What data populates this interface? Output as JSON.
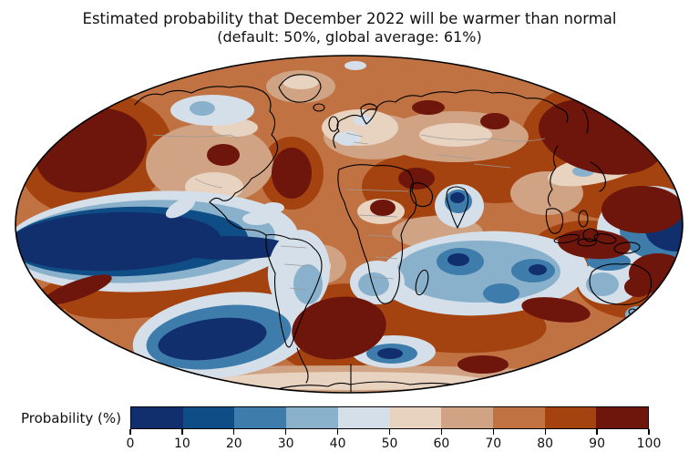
{
  "figure": {
    "title_line1": "Estimated probability that December 2022 will be warmer than normal",
    "title_line2": "(default: 50%, global average: 61%)",
    "default_probability_pct": 50,
    "global_average_pct": 61
  },
  "map": {
    "projection": "mollweide-global",
    "coastline_color": "#000000",
    "country_border_color": "#9a9a9a",
    "regions": [
      {
        "name": "equatorial-pacific-cold-tongue",
        "probability_pct": "0-10"
      },
      {
        "name": "eastern-pacific-right-edge",
        "probability_pct": "0-10"
      },
      {
        "name": "southeast-pacific",
        "probability_pct": "0-20"
      },
      {
        "name": "north-pacific",
        "probability_pct": "90-100"
      },
      {
        "name": "northwest-pacific",
        "probability_pct": "90-100"
      },
      {
        "name": "south-atlantic",
        "probability_pct": "90-100"
      },
      {
        "name": "maritime-continent",
        "probability_pct": "90-100"
      },
      {
        "name": "hudson-bay-canada",
        "probability_pct": "30-50"
      },
      {
        "name": "central-north-america",
        "probability_pct": "50-70"
      },
      {
        "name": "europe",
        "probability_pct": "40-60"
      },
      {
        "name": "india",
        "probability_pct": "10-30"
      },
      {
        "name": "indian-ocean",
        "probability_pct": "10-40"
      },
      {
        "name": "southern-africa",
        "probability_pct": "30-50"
      },
      {
        "name": "central-south-america",
        "probability_pct": "30-50"
      },
      {
        "name": "western-australia",
        "probability_pct": "20-40"
      },
      {
        "name": "eastern-australia",
        "probability_pct": "80-100"
      },
      {
        "name": "most-other-land-and-ocean",
        "probability_pct": "60-90"
      }
    ]
  },
  "colorbar": {
    "label": "Probability (%)",
    "ticks": [
      "0",
      "10",
      "20",
      "30",
      "40",
      "50",
      "60",
      "70",
      "80",
      "90",
      "100"
    ],
    "bin_ranges_pct": [
      "0-10",
      "10-20",
      "20-30",
      "30-40",
      "40-50",
      "50-60",
      "60-70",
      "70-80",
      "80-90",
      "90-100"
    ],
    "segment_colors": [
      "#112f6d",
      "#0f4d86",
      "#3e7cab",
      "#8ab1cc",
      "#d4dfe9",
      "#e8d2c0",
      "#cfa383",
      "#c07243",
      "#a4430f",
      "#6e150c"
    ]
  }
}
